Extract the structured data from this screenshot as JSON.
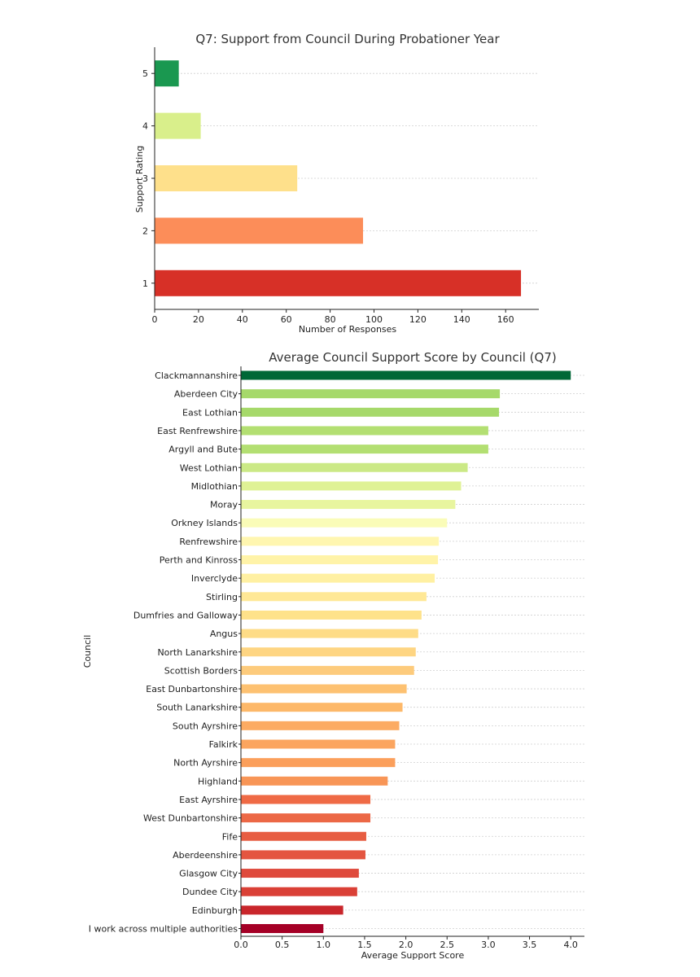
{
  "chart_data": [
    {
      "type": "bar",
      "orientation": "horizontal",
      "title": "Q7: Support from Council During Probationer Year",
      "xlabel": "Number of Responses",
      "ylabel": "Support Rating",
      "categories": [
        "1",
        "2",
        "3",
        "4",
        "5"
      ],
      "values": [
        167,
        95,
        65,
        21,
        11
      ],
      "colors": [
        "#d73027",
        "#fc8d59",
        "#fee08b",
        "#d9ef8b",
        "#1a9850"
      ],
      "xlim": [
        0,
        175
      ],
      "xticks": [
        0,
        20,
        40,
        60,
        80,
        100,
        120,
        140,
        160
      ],
      "grid": "horizontal dotted"
    },
    {
      "type": "bar",
      "orientation": "horizontal",
      "title": "Average Council Support Score by Council (Q7)",
      "xlabel": "Average Support Score",
      "ylabel": "Council",
      "categories": [
        "Clackmannanshire",
        "Aberdeen City",
        "East Lothian",
        "East Renfrewshire",
        "Argyll and Bute",
        "West Lothian",
        "Midlothian",
        "Moray",
        "Orkney Islands",
        "Renfrewshire",
        "Perth and Kinross",
        "Inverclyde",
        "Stirling",
        "Dumfries and Galloway",
        "Angus",
        "North Lanarkshire",
        "Scottish Borders",
        "East Dunbartonshire",
        "South Lanarkshire",
        "South Ayrshire",
        "Falkirk",
        "North Ayrshire",
        "Highland",
        "East Ayrshire",
        "West Dunbartonshire",
        "Fife",
        "Aberdeenshire",
        "Glasgow City",
        "Dundee City",
        "Edinburgh",
        "I work across multiple authorities"
      ],
      "values": [
        4.0,
        3.14,
        3.13,
        3.0,
        3.0,
        2.75,
        2.67,
        2.6,
        2.5,
        2.4,
        2.39,
        2.35,
        2.25,
        2.19,
        2.15,
        2.12,
        2.1,
        2.01,
        1.96,
        1.92,
        1.87,
        1.87,
        1.78,
        1.57,
        1.57,
        1.52,
        1.51,
        1.43,
        1.41,
        1.24,
        1.0
      ],
      "colors": [
        "#006837",
        "#a6d96a",
        "#a6d96a",
        "#b3df72",
        "#b3df72",
        "#cbe986",
        "#dff295",
        "#e8f59f",
        "#fafcb8",
        "#fff6b0",
        "#fff3a8",
        "#fff0a2",
        "#ffe896",
        "#fee28a",
        "#fedc87",
        "#fed582",
        "#fdcb7c",
        "#fdc171",
        "#fdb869",
        "#fcab63",
        "#fba55f",
        "#fb9f5b",
        "#f89556",
        "#ef6a45",
        "#ec6846",
        "#e75d42",
        "#e45540",
        "#df4a3c",
        "#da4036",
        "#c9262b",
        "#a50026"
      ],
      "xlim": [
        0,
        4.2
      ],
      "xticks": [
        "0.0",
        "0.5",
        "1.0",
        "1.5",
        "2.0",
        "2.5",
        "3.0",
        "3.5",
        "4.0"
      ],
      "grid": "horizontal dotted"
    }
  ]
}
